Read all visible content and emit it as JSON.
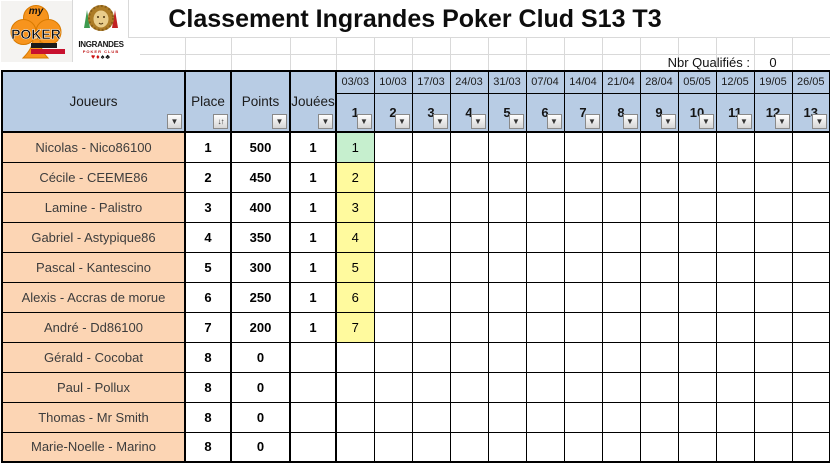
{
  "title": "Classement Ingrandes Poker Clud S13 T3",
  "qualified": {
    "label": "Nbr Qualifiés :",
    "value": "0"
  },
  "logos": {
    "my_poker": {
      "top": "my",
      "main": "POKER"
    },
    "ingrandes": {
      "name": "INGRANDES",
      "subtitle": "POKER CLUB",
      "suits": {
        "s1": "♥",
        "s2": "♦",
        "s3": "♠",
        "s4": "♣"
      }
    }
  },
  "icons": {
    "filter_arrow": "▼",
    "sort_filter": "↓↑"
  },
  "colors": {
    "header_bg": "#B8CCE4",
    "name_bg": "#FCD5B4",
    "first_place_bg": "#C6EFCE",
    "placed_bg": "#FFFA9E",
    "accent_orange": "#F7941D",
    "banner_red": "#C8102E"
  },
  "table": {
    "headers": {
      "joueurs": "Joueurs",
      "place": "Place",
      "points": "Points",
      "jouees": "Jouées"
    },
    "rounds": [
      {
        "date": "03/03",
        "num": "1"
      },
      {
        "date": "10/03",
        "num": "2"
      },
      {
        "date": "17/03",
        "num": "3"
      },
      {
        "date": "24/03",
        "num": "4"
      },
      {
        "date": "31/03",
        "num": "5"
      },
      {
        "date": "07/04",
        "num": "6"
      },
      {
        "date": "14/04",
        "num": "7"
      },
      {
        "date": "21/04",
        "num": "8"
      },
      {
        "date": "28/04",
        "num": "9"
      },
      {
        "date": "05/05",
        "num": "10"
      },
      {
        "date": "12/05",
        "num": "11"
      },
      {
        "date": "19/05",
        "num": "12"
      },
      {
        "date": "26/05",
        "num": "13"
      }
    ],
    "rows": [
      {
        "name": "Nicolas - Nico86100",
        "place": "1",
        "points": "500",
        "jouees": "1",
        "round1": "1",
        "round1_bg": "green"
      },
      {
        "name": "Cécile - CEEME86",
        "place": "2",
        "points": "450",
        "jouees": "1",
        "round1": "2",
        "round1_bg": "yellow"
      },
      {
        "name": "Lamine - Palistro",
        "place": "3",
        "points": "400",
        "jouees": "1",
        "round1": "3",
        "round1_bg": "yellow"
      },
      {
        "name": "Gabriel - Astypique86",
        "place": "4",
        "points": "350",
        "jouees": "1",
        "round1": "4",
        "round1_bg": "yellow"
      },
      {
        "name": "Pascal - Kantescino",
        "place": "5",
        "points": "300",
        "jouees": "1",
        "round1": "5",
        "round1_bg": "yellow"
      },
      {
        "name": "Alexis - Accras de morue",
        "place": "6",
        "points": "250",
        "jouees": "1",
        "round1": "6",
        "round1_bg": "yellow"
      },
      {
        "name": "André - Dd86100",
        "place": "7",
        "points": "200",
        "jouees": "1",
        "round1": "7",
        "round1_bg": "yellow"
      },
      {
        "name": "Gérald - Cocobat",
        "place": "8",
        "points": "0",
        "jouees": "",
        "round1": "",
        "round1_bg": ""
      },
      {
        "name": "Paul - Pollux",
        "place": "8",
        "points": "0",
        "jouees": "",
        "round1": "",
        "round1_bg": ""
      },
      {
        "name": "Thomas - Mr Smith",
        "place": "8",
        "points": "0",
        "jouees": "",
        "round1": "",
        "round1_bg": ""
      },
      {
        "name": "Marie-Noelle - Marino",
        "place": "8",
        "points": "0",
        "jouees": "",
        "round1": "",
        "round1_bg": ""
      }
    ]
  }
}
